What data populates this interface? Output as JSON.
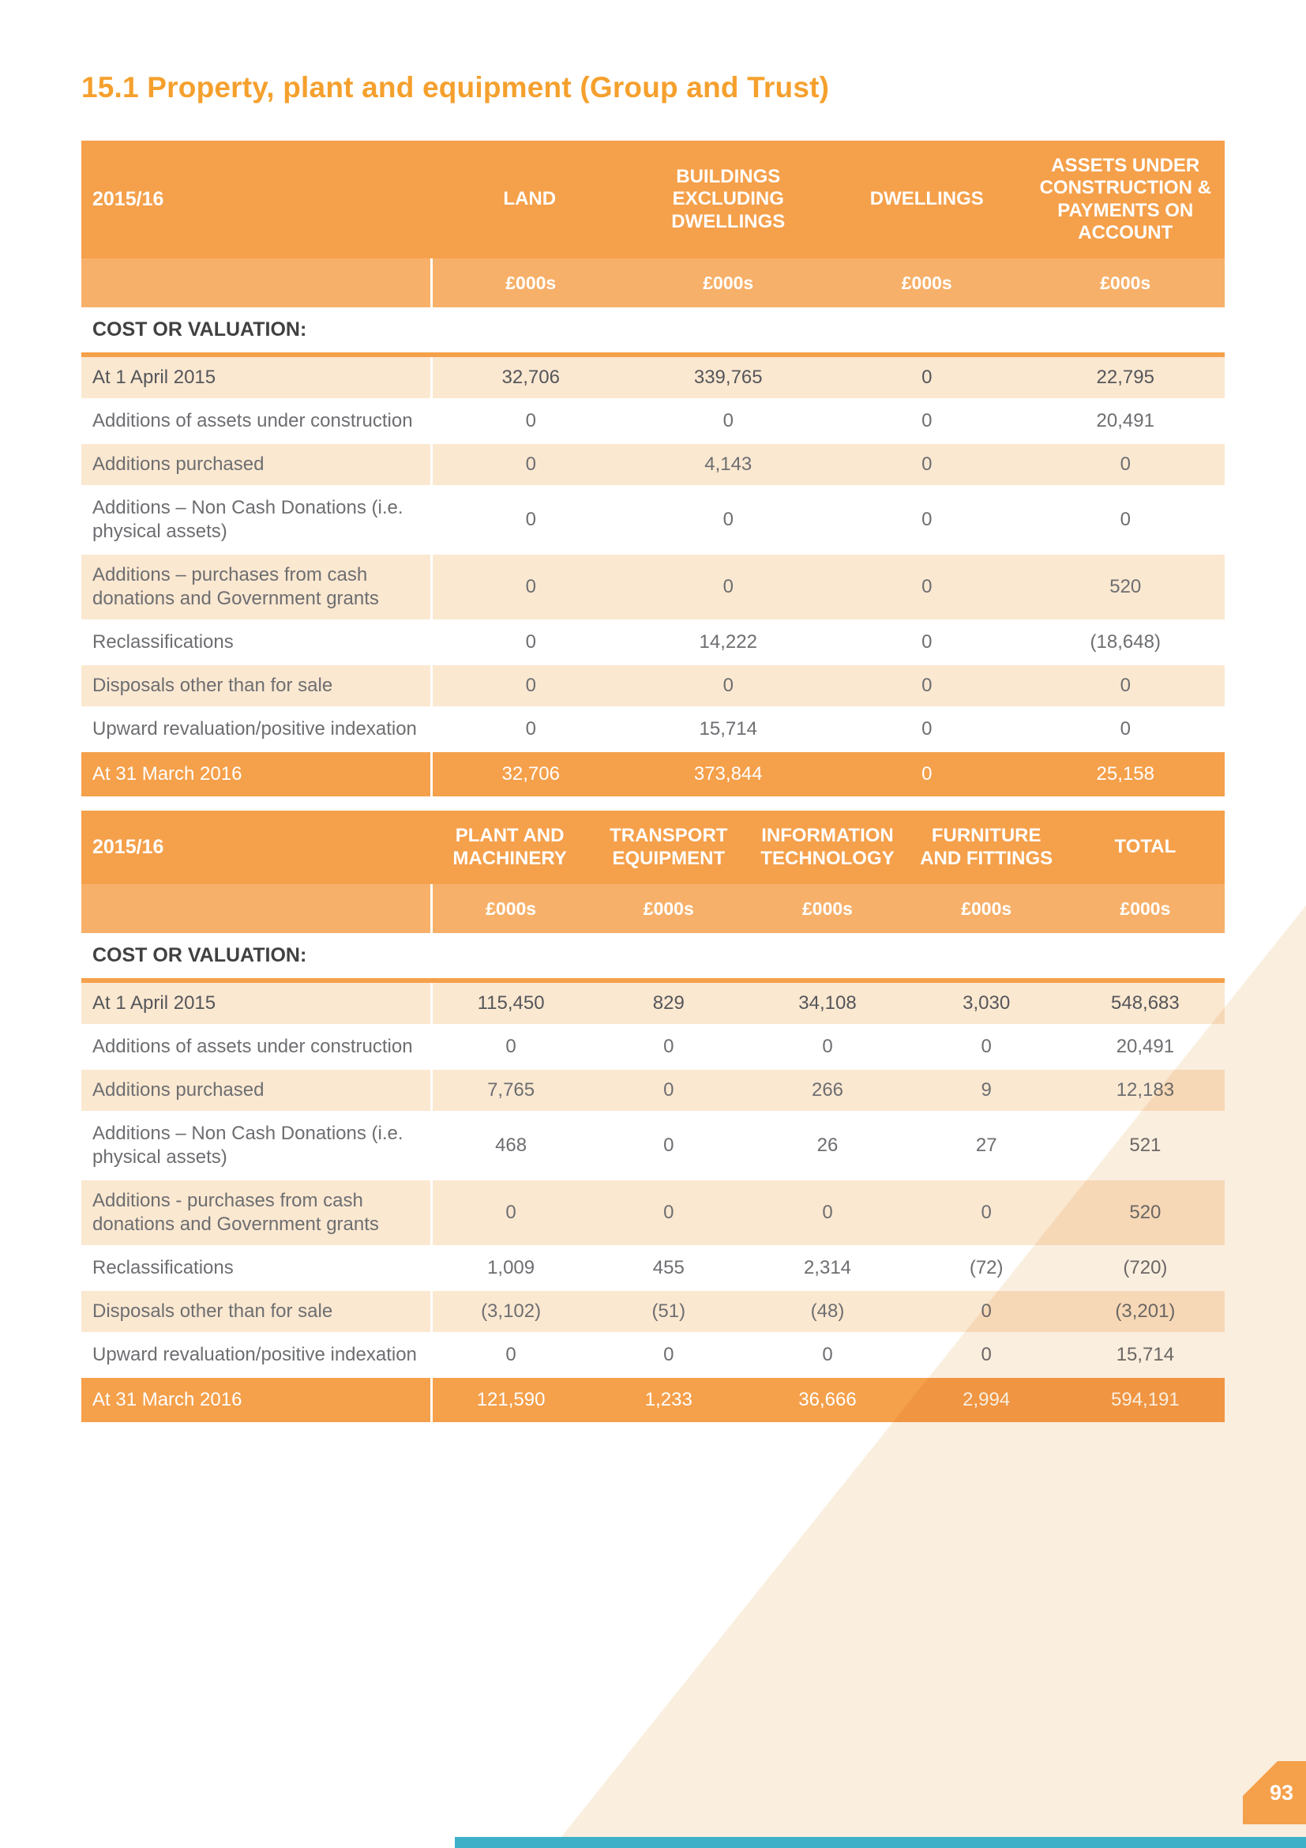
{
  "page": {
    "title": "15.1 Property, plant and equipment (Group and Trust)",
    "page_number": "93"
  },
  "colors": {
    "orange": "#F5A04B",
    "orange_light": "#F7B069",
    "cream_row": "#FBE8D1",
    "title_orange": "#F5A02D",
    "teal_bar": "#3EB1C8",
    "text_gray": "#6D6E71",
    "text_dark": "#414042"
  },
  "table1": {
    "year": "2015/16",
    "columns": [
      "LAND",
      "BUILDINGS EXCLUDING DWELLINGS",
      "DWELLINGS",
      "ASSETS UNDER CONSTRUCTION & PAYMENTS ON ACCOUNT"
    ],
    "units": [
      "£000s",
      "£000s",
      "£000s",
      "£000s"
    ],
    "section": "COST OR VALUATION:",
    "rows": [
      {
        "label": "At 1 April 2015",
        "values": [
          "32,706",
          "339,765",
          "0",
          "22,795"
        ]
      },
      {
        "label": "Additions of assets under construction",
        "values": [
          "0",
          "0",
          "0",
          "20,491"
        ]
      },
      {
        "label": "Additions purchased",
        "values": [
          "0",
          "4,143",
          "0",
          "0"
        ]
      },
      {
        "label": "Additions – Non Cash Donations (i.e. physical assets)",
        "values": [
          "0",
          "0",
          "0",
          "0"
        ]
      },
      {
        "label": "Additions – purchases from cash donations and Government grants",
        "values": [
          "0",
          "0",
          "0",
          "520"
        ]
      },
      {
        "label": "Reclassifications",
        "values": [
          "0",
          "14,222",
          "0",
          "(18,648)"
        ]
      },
      {
        "label": "Disposals other than for sale",
        "values": [
          "0",
          "0",
          "0",
          "0"
        ]
      },
      {
        "label": "Upward revaluation/positive indexation",
        "values": [
          "0",
          "15,714",
          "0",
          "0"
        ]
      }
    ],
    "total_row": {
      "label": "At 31 March 2016",
      "values": [
        "32,706",
        "373,844",
        "0",
        "25,158"
      ]
    }
  },
  "table2": {
    "year": "2015/16",
    "columns": [
      "PLANT AND MACHINERY",
      "TRANSPORT EQUIPMENT",
      "INFORMATION TECHNOLOGY",
      "FURNITURE AND FITTINGS",
      "TOTAL"
    ],
    "units": [
      "£000s",
      "£000s",
      "£000s",
      "£000s",
      "£000s"
    ],
    "section": "COST OR VALUATION:",
    "rows": [
      {
        "label": "At 1 April 2015",
        "values": [
          "115,450",
          "829",
          "34,108",
          "3,030",
          "548,683"
        ]
      },
      {
        "label": "Additions of assets under construction",
        "values": [
          "0",
          "0",
          "0",
          "0",
          "20,491"
        ]
      },
      {
        "label": "Additions purchased",
        "values": [
          "7,765",
          "0",
          "266",
          "9",
          "12,183"
        ]
      },
      {
        "label": "Additions – Non Cash Donations (i.e. physical assets)",
        "values": [
          "468",
          "0",
          "26",
          "27",
          "521"
        ]
      },
      {
        "label": "Additions - purchases from cash donations and Government grants",
        "values": [
          "0",
          "0",
          "0",
          "0",
          "520"
        ]
      },
      {
        "label": "Reclassifications",
        "values": [
          "1,009",
          "455",
          "2,314",
          "(72)",
          "(720)"
        ]
      },
      {
        "label": "Disposals other than for sale",
        "values": [
          "(3,102)",
          "(51)",
          "(48)",
          "0",
          "(3,201)"
        ]
      },
      {
        "label": "Upward revaluation/positive indexation",
        "values": [
          "0",
          "0",
          "0",
          "0",
          "15,714"
        ]
      }
    ],
    "total_row": {
      "label": "At 31 March 2016",
      "values": [
        "121,590",
        "1,233",
        "36,666",
        "2,994",
        "594,191"
      ]
    }
  }
}
